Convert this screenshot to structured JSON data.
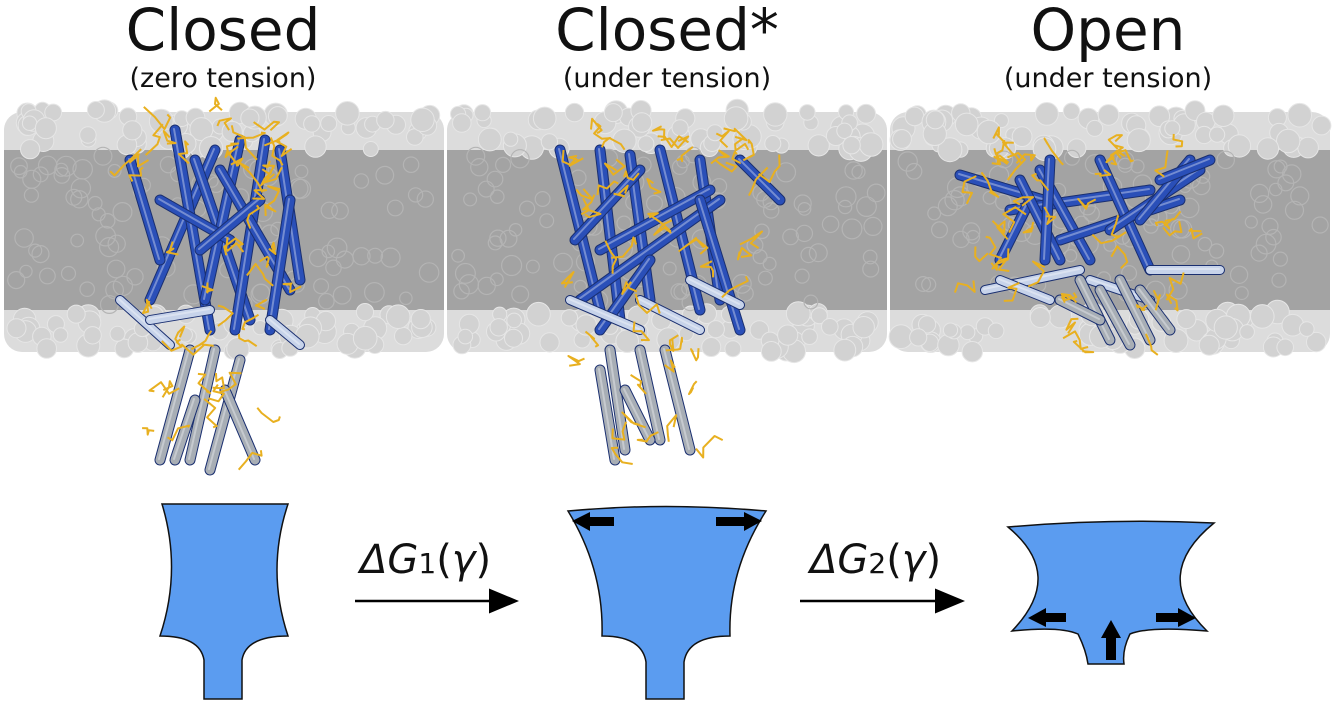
{
  "panels": [
    {
      "state": "Closed",
      "condition": "(zero tension)"
    },
    {
      "state": "Closed*",
      "condition": "(under tension)"
    },
    {
      "state": "Open",
      "condition": "(under tension)"
    }
  ],
  "transitions": [
    {
      "symbol": "ΔG",
      "subscript": "1",
      "open": "(",
      "gamma": "γ",
      "close": ")"
    },
    {
      "symbol": "ΔG",
      "subscript": "2",
      "open": "(",
      "gamma": "γ",
      "close": ")"
    }
  ],
  "colors": {
    "membrane_outer": "#dcdcdc",
    "membrane_core": "#a3a3a3",
    "helix_dark": "#2a4fb8",
    "helix_light": "#c7d3ea",
    "helix_grey": "#a8aeb5",
    "loop": "#e8b020",
    "schematic_fill": "#5b9cf0",
    "arrow": "#000000"
  }
}
